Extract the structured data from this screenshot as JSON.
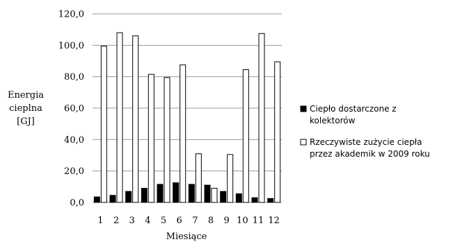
{
  "chart_data": {
    "type": "bar",
    "categories": [
      "1",
      "2",
      "3",
      "4",
      "5",
      "6",
      "7",
      "8",
      "9",
      "10",
      "11",
      "12"
    ],
    "series": [
      {
        "name": "Ciepło dostarczone z kolektorów",
        "legend_lines": [
          "Ciepło dostarczone z",
          "kolektorów"
        ],
        "fill": "#000000",
        "values": [
          3.5,
          4.5,
          7.0,
          9.0,
          11.5,
          12.5,
          11.5,
          11.0,
          7.0,
          5.5,
          3.0,
          2.5
        ]
      },
      {
        "name": "Rzeczywiste zużycie ciepła przez akademik w 2009 roku",
        "legend_lines": [
          "Rzeczywiste zużycie ciepła",
          "przez akademik w 2009 roku"
        ],
        "fill": "#ffffff",
        "values": [
          99.5,
          108.0,
          106.0,
          81.5,
          79.5,
          87.5,
          31.0,
          9.0,
          30.5,
          84.5,
          107.5,
          89.5
        ]
      }
    ],
    "ylim": [
      0,
      120
    ],
    "yticks": [
      "0,0",
      "20,0",
      "40,0",
      "60,0",
      "80,0",
      "100,0",
      "120,0"
    ],
    "ylabel_lines": [
      "Energia",
      "cieplna",
      "[GJ]"
    ],
    "xlabel": "Miesiące",
    "grid": true,
    "legend_position": "right"
  }
}
